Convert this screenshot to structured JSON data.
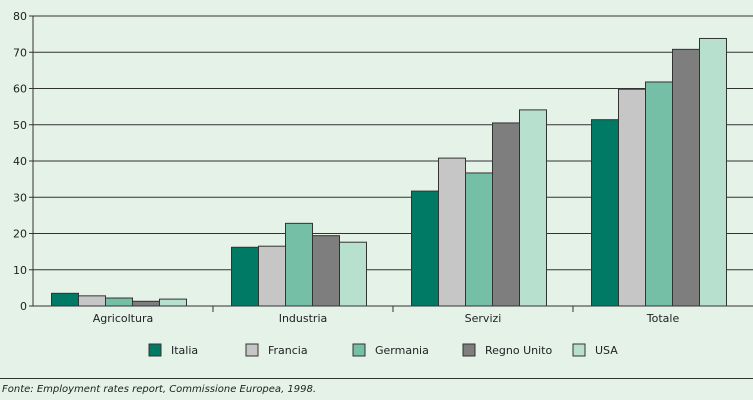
{
  "chart_data": {
    "type": "bar",
    "categories": [
      "Agricoltura",
      "Industria",
      "Servizi",
      "Totale"
    ],
    "series": [
      {
        "name": "Italia",
        "color": "#007a64",
        "values": [
          3.5,
          16.2,
          31.7,
          51.4
        ]
      },
      {
        "name": "Francia",
        "color": "#c6c6c6",
        "values": [
          2.8,
          16.5,
          40.8,
          59.8
        ]
      },
      {
        "name": "Germania",
        "color": "#76bfa7",
        "values": [
          2.2,
          22.8,
          36.7,
          61.8
        ]
      },
      {
        "name": "Regno Unito",
        "color": "#7e7e7e",
        "values": [
          1.3,
          19.4,
          50.5,
          70.8
        ]
      },
      {
        "name": "USA",
        "color": "#b7e0cf",
        "values": [
          1.9,
          17.6,
          54.1,
          73.8
        ]
      }
    ],
    "ylim": [
      0,
      80
    ],
    "yticks": [
      0,
      10,
      20,
      30,
      40,
      50,
      60,
      70,
      80
    ],
    "grid": true,
    "legend_position": "bottom"
  },
  "source_note": "Fonte: Employment rates report, Commissione Europea, 1998."
}
